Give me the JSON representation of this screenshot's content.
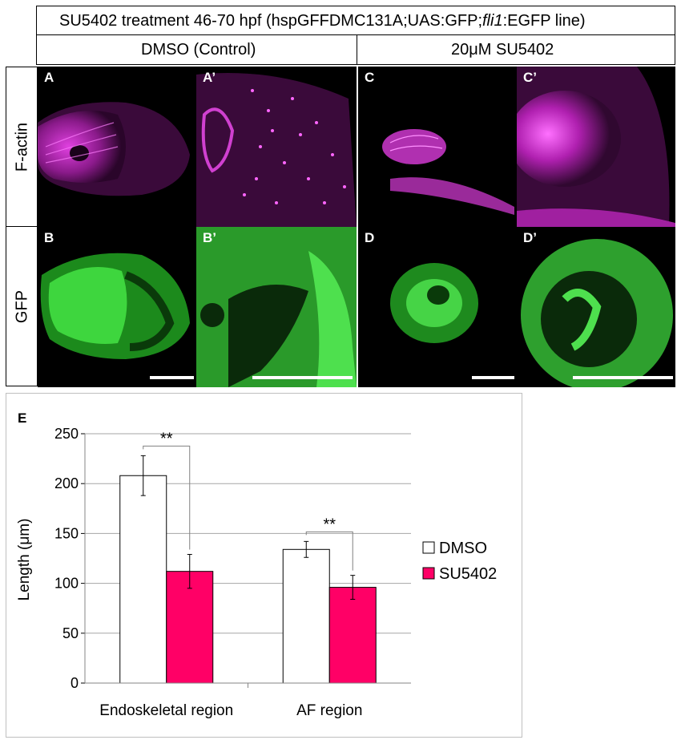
{
  "header": {
    "title_pre": "SU5402 treatment 46-70 hpf (hspGFFDMC131A;UAS:GFP;",
    "title_italic": "fli1",
    "title_post": ":EGFP line)",
    "control_label": "DMSO (Control)",
    "treatment_label": "20μM SU5402"
  },
  "rows": {
    "factin_label": "F-actin",
    "gfp_label": "GFP"
  },
  "panels": {
    "a": "A",
    "a_prime": "A’",
    "c": "C",
    "c_prime": "C’",
    "b": "B",
    "b_prime": "B’",
    "d": "D",
    "d_prime": "D’"
  },
  "colors": {
    "factin": "#d62ad6",
    "gfp": "#2fd62f",
    "dmso_bar": "#ffffff",
    "su5402_bar": "#ff0066"
  },
  "chart_data": {
    "type": "bar",
    "panel_label": "E",
    "categories": [
      "Endoskeletal region",
      "AF region"
    ],
    "series": [
      {
        "name": "DMSO",
        "values": [
          208,
          134
        ],
        "error": [
          20,
          8
        ]
      },
      {
        "name": "SU5402",
        "values": [
          112,
          96
        ],
        "error": [
          17,
          12
        ]
      }
    ],
    "ylabel": "Length (μm)",
    "ylim": [
      0,
      250
    ],
    "yticks": [
      0,
      50,
      100,
      150,
      200,
      250
    ],
    "significance": [
      "**",
      "**"
    ],
    "grid": true,
    "legend_position": "right"
  }
}
